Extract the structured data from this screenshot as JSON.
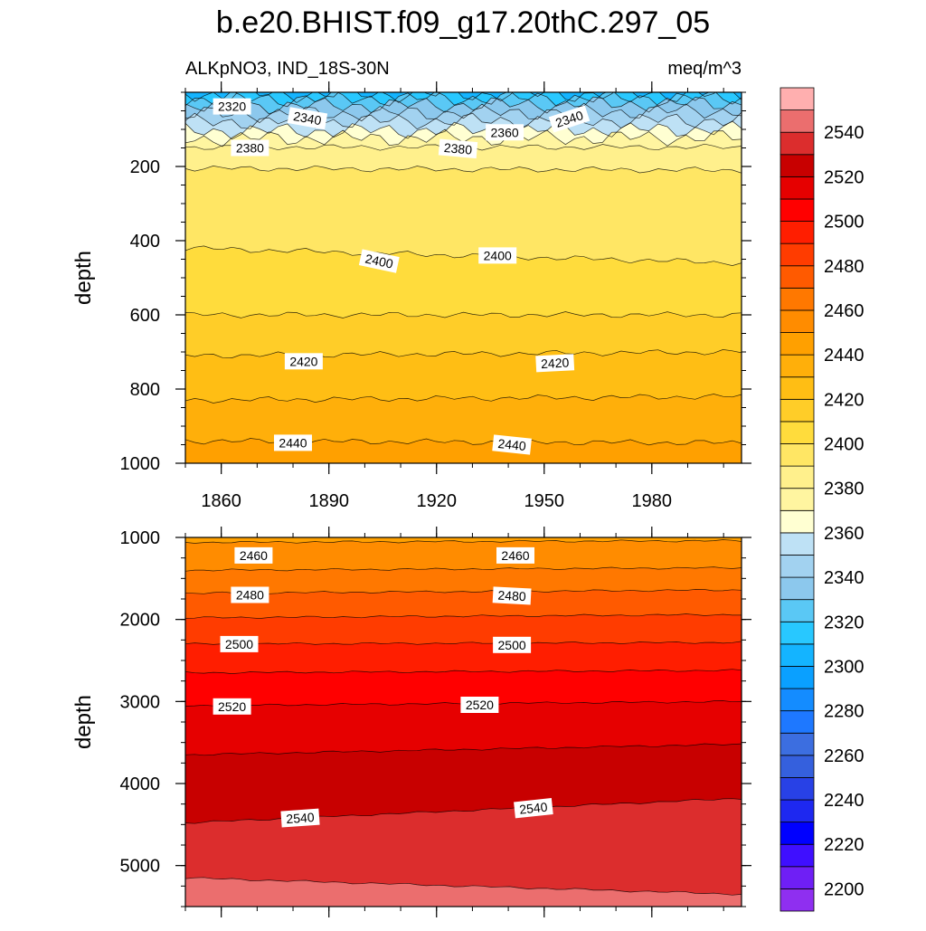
{
  "chart_data": {
    "type": "heatmap",
    "title": "b.e20.BHIST.f09_g17.20thC.297_05",
    "left_subtitle": "ALKpNO3, IND_18S-30N",
    "right_subtitle": "meq/m^3",
    "x_tick_labels": [
      "1860",
      "1890",
      "1920",
      "1950",
      "1980"
    ],
    "x_ticks": [
      1860,
      1890,
      1920,
      1950,
      1980
    ],
    "xlim": [
      1850,
      2005
    ],
    "colorbar": {
      "levels": [
        2200,
        2210,
        2220,
        2230,
        2240,
        2250,
        2260,
        2270,
        2280,
        2290,
        2300,
        2310,
        2320,
        2330,
        2340,
        2350,
        2360,
        2370,
        2380,
        2390,
        2400,
        2410,
        2420,
        2430,
        2440,
        2450,
        2460,
        2470,
        2480,
        2490,
        2500,
        2510,
        2520,
        2530,
        2540,
        2550
      ],
      "colors": [
        "#8f2ff0",
        "#6f1ff5",
        "#3f0fff",
        "#0000ff",
        "#1e28f0",
        "#2841e6",
        "#3560dd",
        "#3c6ee0",
        "#1e78ff",
        "#148cff",
        "#0aa0ff",
        "#14b4ff",
        "#28c8ff",
        "#5ac8f5",
        "#8cc8ed",
        "#a2d2f0",
        "#bee1f5",
        "#ffffd2",
        "#fff5a0",
        "#fff08c",
        "#ffe664",
        "#ffdc3c",
        "#ffcd28",
        "#ffbe14",
        "#ffaf0a",
        "#ffa000",
        "#ff8c00",
        "#ff7800",
        "#ff5a00",
        "#ff3c00",
        "#ff1e00",
        "#ff0000",
        "#e60000",
        "#c80000",
        "#dc2d2d",
        "#eb6e6e",
        "#ffafaf"
      ],
      "tick_labels": [
        "2200",
        "2220",
        "2240",
        "2260",
        "2280",
        "2300",
        "2320",
        "2340",
        "2360",
        "2380",
        "2400",
        "2420",
        "2440",
        "2460",
        "2480",
        "2500",
        "2520",
        "2540"
      ],
      "tick_values": [
        2200,
        2220,
        2240,
        2260,
        2280,
        2300,
        2320,
        2340,
        2360,
        2380,
        2400,
        2420,
        2440,
        2460,
        2480,
        2500,
        2520,
        2540
      ]
    },
    "panels": [
      {
        "name": "upper",
        "ylabel": "depth",
        "ylim": [
          0,
          1000
        ],
        "y_tick_labels": [
          "200",
          "400",
          "600",
          "800",
          "1000"
        ],
        "y_ticks": [
          200,
          400,
          600,
          800,
          1000
        ],
        "contours": [
          {
            "level": 2310,
            "depth_start": 5,
            "depth_end": 5
          },
          {
            "level": 2320,
            "depth_start": 18,
            "depth_end": 15
          },
          {
            "level": 2330,
            "depth_start": 38,
            "depth_end": 30
          },
          {
            "level": 2340,
            "depth_start": 60,
            "depth_end": 50
          },
          {
            "level": 2350,
            "depth_start": 80,
            "depth_end": 75
          },
          {
            "level": 2360,
            "depth_start": 105,
            "depth_end": 100
          },
          {
            "level": 2370,
            "depth_start": 125,
            "depth_end": 122
          },
          {
            "level": 2380,
            "depth_start": 148,
            "depth_end": 148
          },
          {
            "level": 2390,
            "depth_start": 205,
            "depth_end": 210
          },
          {
            "level": 2400,
            "depth_start": 420,
            "depth_end": 460
          },
          {
            "level": 2410,
            "depth_start": 600,
            "depth_end": 600
          },
          {
            "level": 2420,
            "depth_start": 710,
            "depth_end": 700
          },
          {
            "level": 2430,
            "depth_start": 830,
            "depth_end": 820
          },
          {
            "level": 2440,
            "depth_start": 940,
            "depth_end": 945
          }
        ],
        "labels": [
          {
            "text": "2320",
            "year": 1863,
            "depth": 38,
            "angle": 0
          },
          {
            "text": "2340",
            "year": 1884,
            "depth": 70,
            "angle": 10
          },
          {
            "text": "2380",
            "year": 1868,
            "depth": 150,
            "angle": 0
          },
          {
            "text": "2380",
            "year": 1926,
            "depth": 152,
            "angle": 5
          },
          {
            "text": "2360",
            "year": 1939,
            "depth": 108,
            "angle": 0
          },
          {
            "text": "2340",
            "year": 1957,
            "depth": 72,
            "angle": -18
          },
          {
            "text": "2400",
            "year": 1904,
            "depth": 455,
            "angle": 12
          },
          {
            "text": "2400",
            "year": 1937,
            "depth": 440,
            "angle": 0
          },
          {
            "text": "2420",
            "year": 1883,
            "depth": 725,
            "angle": 0
          },
          {
            "text": "2420",
            "year": 1953,
            "depth": 730,
            "angle": -3
          },
          {
            "text": "2440",
            "year": 1880,
            "depth": 945,
            "angle": 0
          },
          {
            "text": "2440",
            "year": 1941,
            "depth": 950,
            "angle": 6
          }
        ]
      },
      {
        "name": "lower",
        "ylabel": "depth",
        "ylim": [
          1000,
          5500
        ],
        "y_tick_labels": [
          "1000",
          "2000",
          "3000",
          "4000",
          "5000"
        ],
        "y_ticks": [
          1000,
          2000,
          3000,
          4000,
          5000
        ],
        "contours": [
          {
            "level": 2450,
            "depth_start": 1060,
            "depth_end": 1040
          },
          {
            "level": 2460,
            "depth_start": 1400,
            "depth_end": 1370
          },
          {
            "level": 2470,
            "depth_start": 1680,
            "depth_end": 1640
          },
          {
            "level": 2480,
            "depth_start": 1980,
            "depth_end": 1940
          },
          {
            "level": 2490,
            "depth_start": 2300,
            "depth_end": 2280
          },
          {
            "level": 2500,
            "depth_start": 2650,
            "depth_end": 2620
          },
          {
            "level": 2510,
            "depth_start": 3050,
            "depth_end": 3000
          },
          {
            "level": 2520,
            "depth_start": 3650,
            "depth_end": 3520
          },
          {
            "level": 2530,
            "depth_start": 4480,
            "depth_end": 4180
          },
          {
            "level": 2540,
            "depth_start": 5150,
            "depth_end": 5350
          }
        ],
        "labels": [
          {
            "text": "2460",
            "year": 1869,
            "depth": 1220,
            "angle": 0
          },
          {
            "text": "2460",
            "year": 1942,
            "depth": 1220,
            "angle": 0
          },
          {
            "text": "2480",
            "year": 1868,
            "depth": 1700,
            "angle": 0
          },
          {
            "text": "2480",
            "year": 1941,
            "depth": 1710,
            "angle": 3
          },
          {
            "text": "2500",
            "year": 1865,
            "depth": 2300,
            "angle": 0
          },
          {
            "text": "2500",
            "year": 1941,
            "depth": 2310,
            "angle": 0
          },
          {
            "text": "2520",
            "year": 1863,
            "depth": 3060,
            "angle": 0
          },
          {
            "text": "2520",
            "year": 1932,
            "depth": 3040,
            "angle": 0
          },
          {
            "text": "2540",
            "year": 1882,
            "depth": 4420,
            "angle": -4
          },
          {
            "text": "2540",
            "year": 1947,
            "depth": 4300,
            "angle": -6
          }
        ]
      }
    ]
  }
}
